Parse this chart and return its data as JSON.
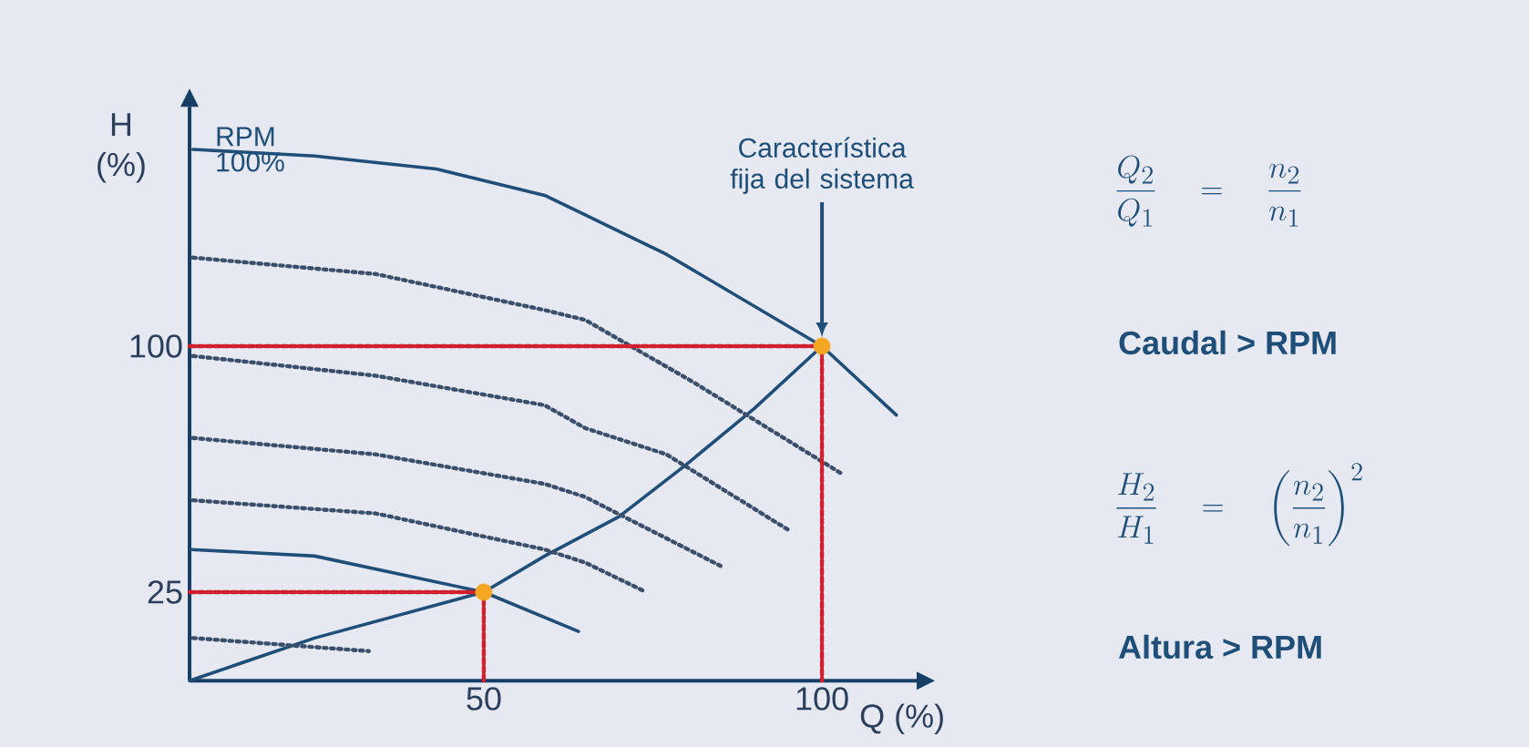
{
  "chart_data": {
    "type": "line",
    "xlabel": "Q (%)",
    "ylabel": "H (%)",
    "xlim": [
      6.5,
      114
    ],
    "ylim": [
      -2,
      173
    ],
    "xticks": [
      50,
      100
    ],
    "yticks": [
      25,
      100
    ],
    "grid": false,
    "legend": false,
    "series": [
      {
        "name": "RPM 100%",
        "color": "#1f4e79",
        "line_style": "solid",
        "x": [
          7,
          25,
          43,
          59,
          65,
          77,
          100,
          111
        ],
        "values": [
          160,
          158,
          154,
          146,
          140,
          128,
          100,
          79
        ]
      },
      {
        "color": "#1f4e79",
        "line_style": "solid",
        "x": [
          6.5,
          25,
          50,
          59,
          70,
          80,
          90,
          100
        ],
        "values": [
          -2,
          11,
          25,
          36,
          48,
          64,
          81,
          100
        ]
      },
      {
        "color": "#1f4e79",
        "line_style": "solid",
        "x": [
          6.7,
          25,
          50,
          64
        ],
        "values": [
          38,
          36,
          25,
          13
        ]
      },
      {
        "color": "#3b4f6b",
        "line_style": "dotted",
        "x": [
          7,
          34,
          59,
          65,
          81,
          103
        ],
        "values": [
          127,
          122,
          111,
          108,
          89,
          61
        ]
      },
      {
        "color": "#3b4f6b",
        "line_style": "dotted",
        "x": [
          7,
          34,
          59,
          65,
          77,
          95
        ],
        "values": [
          97,
          91,
          82,
          75,
          67,
          44
        ]
      },
      {
        "color": "#3b4f6b",
        "line_style": "dotted",
        "x": [
          7,
          34,
          59,
          65,
          85
        ],
        "values": [
          72,
          67,
          58,
          54,
          33
        ]
      },
      {
        "color": "#3b4f6b",
        "line_style": "dotted",
        "x": [
          7,
          34,
          59,
          65,
          74
        ],
        "values": [
          53,
          49,
          38,
          34,
          25
        ]
      },
      {
        "color": "#3b4f6b",
        "line_style": "dotted",
        "x": [
          7,
          33
        ],
        "values": [
          11,
          7
        ]
      },
      {
        "color": "#d0202e",
        "line_style": "dashed",
        "x": [
          6.5,
          100,
          100
        ],
        "values": [
          100,
          100,
          -2
        ]
      },
      {
        "color": "#d0202e",
        "line_style": "dashed",
        "x": [
          6.5,
          50,
          50
        ],
        "values": [
          25,
          25,
          -2
        ]
      },
      {
        "type": "scatter",
        "marker": "circle",
        "color": "#f5a623",
        "x": [
          50,
          100
        ],
        "values": [
          25,
          100
        ]
      }
    ],
    "annotations": [
      "Característica fija del sistema",
      "\\frac{Q_2}{Q_1} \\quad = \\quad \\frac{n_2}{n_1}",
      "Caudal > RPM",
      "\\frac{H_2}{H_1} \\quad = \\quad \\left(\\frac{n_2}{n_1}\\right)^{2}",
      "Altura > RPM"
    ]
  }
}
